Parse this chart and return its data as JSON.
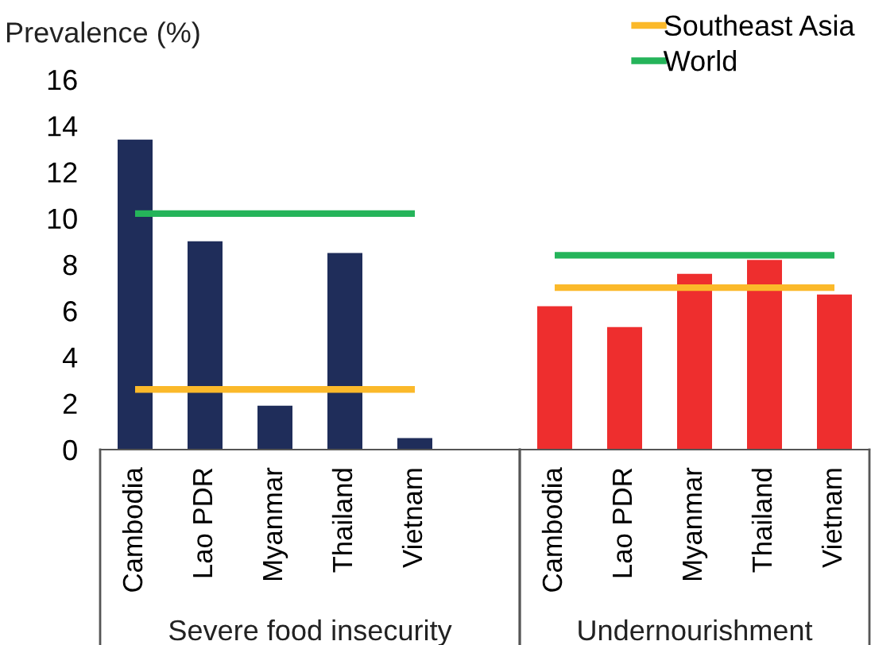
{
  "chart_data": [
    {
      "type": "bar",
      "xlabel": "Severe food insecurity",
      "ylabel": "Prevalence (%)",
      "categories": [
        "Cambodia",
        "Lao PDR",
        "Myanmar",
        "Thailand",
        "Vietnam"
      ],
      "values": [
        13.4,
        9.0,
        1.9,
        8.5,
        0.5
      ],
      "color": "#1f2d5a",
      "ylim": [
        0,
        16
      ],
      "yticks": [
        0,
        2,
        4,
        6,
        8,
        10,
        12,
        14,
        16
      ],
      "grid": false,
      "legend": "top right",
      "ref_lines": [
        {
          "axis": "y",
          "value": 2.6,
          "label": "Southeast Asia",
          "color": "#fbb92a"
        },
        {
          "axis": "y",
          "value": 10.2,
          "label": "World",
          "color": "#25b45a"
        }
      ]
    },
    {
      "type": "bar",
      "xlabel": "Undernourishment",
      "categories": [
        "Cambodia",
        "Lao PDR",
        "Myanmar",
        "Thailand",
        "Vietnam"
      ],
      "values": [
        6.2,
        5.3,
        7.6,
        8.2,
        6.7
      ],
      "color": "#ee2e2e",
      "ylim": [
        0,
        16
      ],
      "yticks": [
        0,
        2,
        4,
        6,
        8,
        10,
        12,
        14,
        16
      ],
      "tick_labels": "x",
      "grid": false,
      "ref_lines": [
        {
          "axis": "y",
          "value": 7.0,
          "color": "#fbb92a"
        },
        {
          "axis": "y",
          "value": 8.4,
          "color": "#25b45a"
        }
      ]
    }
  ]
}
